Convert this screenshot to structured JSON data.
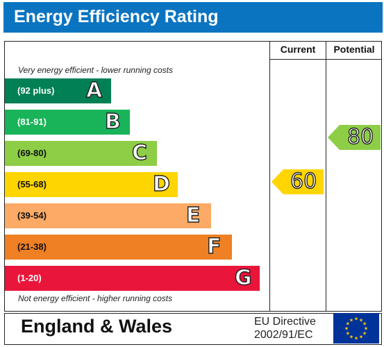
{
  "title": "Energy Efficiency Rating",
  "columns": {
    "current": "Current",
    "potential": "Potential"
  },
  "top_caption": "Very energy efficient - lower running costs",
  "bottom_caption": "Not energy efficient - higher running costs",
  "bands": [
    {
      "letter": "A",
      "range": "(92 plus)",
      "color": "#008054"
    },
    {
      "letter": "B",
      "range": "(81-91)",
      "color": "#19b459"
    },
    {
      "letter": "C",
      "range": "(69-80)",
      "color": "#8dce46"
    },
    {
      "letter": "D",
      "range": "(55-68)",
      "color": "#ffd500"
    },
    {
      "letter": "E",
      "range": "(39-54)",
      "color": "#fcaa65"
    },
    {
      "letter": "F",
      "range": "(21-38)",
      "color": "#ef8023"
    },
    {
      "letter": "G",
      "range": "(1-20)",
      "color": "#e9153b"
    }
  ],
  "current": {
    "value": "60",
    "band": "D",
    "color": "#ffd500"
  },
  "potential": {
    "value": "80",
    "band": "C",
    "color": "#8dce46"
  },
  "footer": {
    "region": "England & Wales",
    "directive_line1": "EU Directive",
    "directive_line2": "2002/91/EC"
  },
  "eu_flag": {
    "icon": "eu-flag-icon",
    "background": "#003399",
    "stars": "#ffcc00"
  }
}
